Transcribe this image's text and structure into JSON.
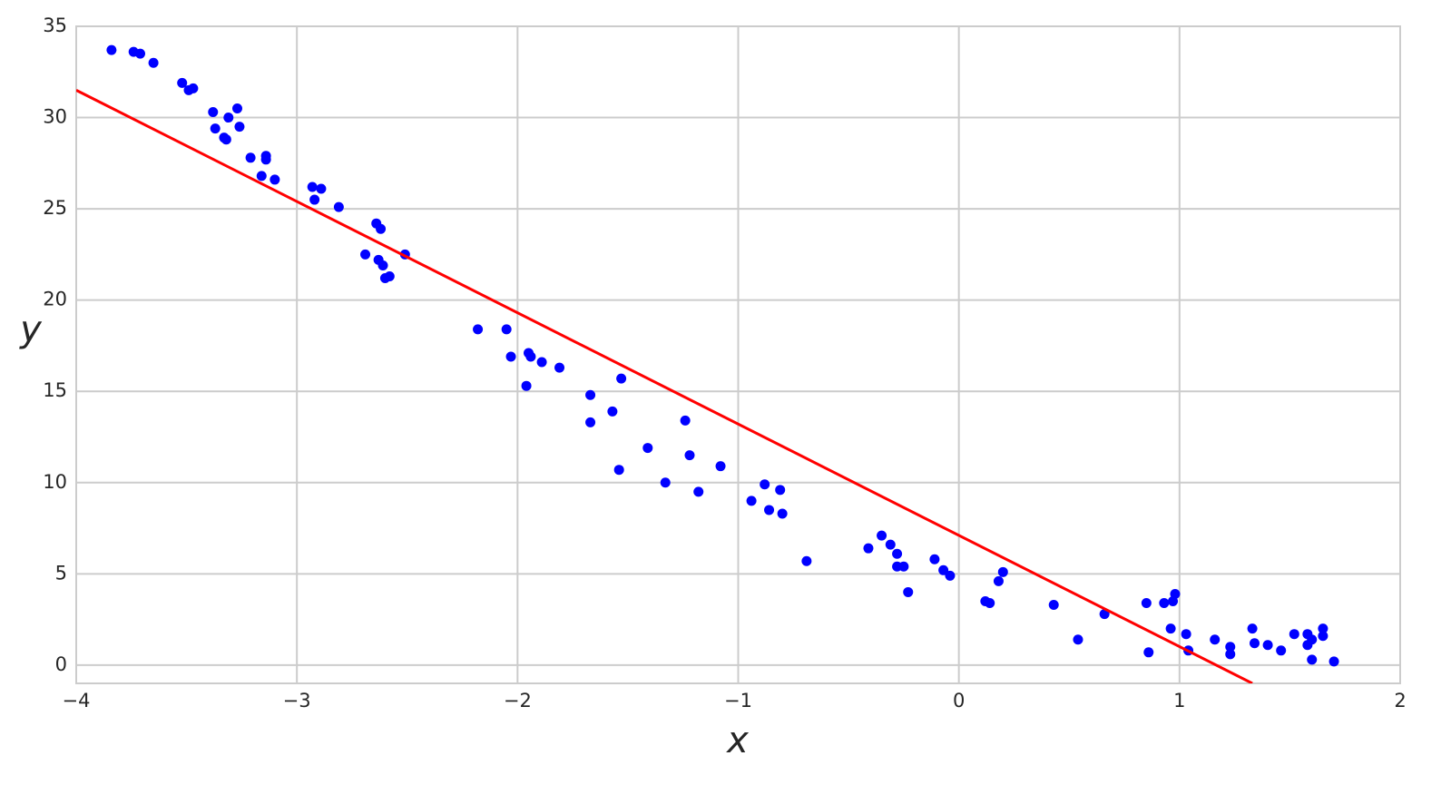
{
  "chart_data": {
    "type": "scatter",
    "x_label": "x",
    "y_label": "y",
    "xlim": [
      -4,
      2
    ],
    "ylim": [
      -1,
      35
    ],
    "xticks": [
      {
        "value": -4,
        "label": "−4"
      },
      {
        "value": -3,
        "label": "−3"
      },
      {
        "value": -2,
        "label": "−2"
      },
      {
        "value": -1,
        "label": "−1"
      },
      0,
      1,
      2
    ],
    "yticks": [
      0,
      5,
      10,
      15,
      20,
      25,
      30,
      35
    ],
    "grid": true,
    "series": [
      {
        "type": "scatter",
        "color": "#0000ff",
        "x": [
          -3.84,
          -3.74,
          -3.71,
          -3.65,
          -3.52,
          -3.49,
          -3.47,
          -3.38,
          -3.37,
          -3.31,
          -3.27,
          -3.33,
          -3.32,
          -3.26,
          -3.21,
          -3.14,
          -3.14,
          -3.16,
          -3.1,
          -2.93,
          -2.89,
          -2.92,
          -2.81,
          -2.64,
          -2.62,
          -2.69,
          -2.51,
          -2.63,
          -2.61,
          -2.6,
          -2.58,
          -2.18,
          -2.05,
          -2.03,
          -1.95,
          -1.94,
          -1.89,
          -1.81,
          -1.96,
          -1.67,
          -1.53,
          -1.67,
          -1.57,
          -1.41,
          -1.54,
          -1.33,
          -1.24,
          -1.22,
          -1.18,
          -1.08,
          -0.94,
          -0.88,
          -0.81,
          -0.86,
          -0.8,
          -0.69,
          -0.41,
          -0.35,
          -0.31,
          -0.28,
          -0.28,
          -0.25,
          -0.23,
          -0.11,
          -0.07,
          -0.04,
          0.12,
          0.14,
          0.18,
          0.2,
          0.43,
          0.54,
          0.66,
          0.85,
          0.86,
          0.93,
          0.97,
          0.98,
          0.96,
          1.03,
          1.04,
          1.16,
          1.23,
          1.23,
          1.33,
          1.34,
          1.4,
          1.46,
          1.52,
          1.58,
          1.58,
          1.6,
          1.6,
          1.65,
          1.65,
          1.7
        ],
        "values": [
          33.7,
          33.6,
          33.5,
          33.0,
          31.9,
          31.5,
          31.6,
          30.3,
          29.4,
          30.0,
          30.5,
          28.9,
          28.8,
          29.5,
          27.8,
          27.9,
          27.7,
          26.8,
          26.6,
          26.2,
          26.1,
          25.5,
          25.1,
          24.2,
          23.9,
          22.5,
          22.5,
          22.2,
          21.9,
          21.2,
          21.3,
          18.4,
          18.4,
          16.9,
          17.1,
          16.9,
          16.6,
          16.3,
          15.3,
          14.8,
          15.7,
          13.3,
          13.9,
          11.9,
          10.7,
          10.0,
          13.4,
          11.5,
          9.5,
          10.9,
          9.0,
          9.9,
          9.6,
          8.5,
          8.3,
          5.7,
          6.4,
          7.1,
          6.6,
          6.1,
          5.4,
          5.4,
          4.0,
          5.8,
          5.2,
          4.9,
          3.5,
          3.4,
          4.6,
          5.1,
          3.3,
          1.4,
          2.8,
          3.4,
          0.7,
          3.4,
          3.5,
          3.9,
          2.0,
          1.7,
          0.8,
          1.4,
          1.0,
          0.6,
          2.0,
          1.2,
          1.1,
          0.8,
          1.7,
          1.7,
          1.1,
          1.4,
          0.3,
          2.0,
          1.6,
          0.2
        ]
      },
      {
        "type": "line",
        "color": "#ff0000",
        "x": [
          -4,
          1.33
        ],
        "values": [
          31.5,
          -1
        ]
      }
    ]
  }
}
